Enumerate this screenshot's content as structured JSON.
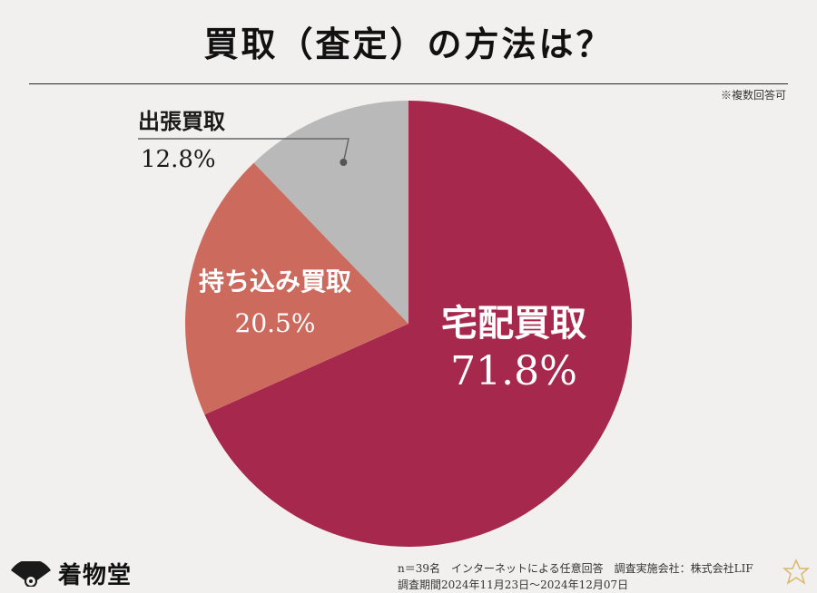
{
  "title": "買取（査定）の方法は？",
  "note": "※複数回答可",
  "chart_data": {
    "type": "pie",
    "categories": [
      "宅配買取",
      "持ち込み買取",
      "出張買取"
    ],
    "values": [
      71.8,
      20.5,
      12.8
    ],
    "value_labels": [
      "71.8%",
      "20.5%",
      "12.8%"
    ],
    "colors": [
      "#a6294d",
      "#cd6a5e",
      "#b9b9b9"
    ],
    "label_colors": [
      "#ffffff",
      "#ffffff",
      "#1a1a1a"
    ]
  },
  "footer": {
    "line1": "n＝39名　インターネットによる任意回答　調査実施会社：株式会社LIF",
    "line2": "調査期間2024年11月23日～2024年12月07日"
  },
  "logo": {
    "text": "着物堂",
    "icon": "fan-logo-icon"
  }
}
